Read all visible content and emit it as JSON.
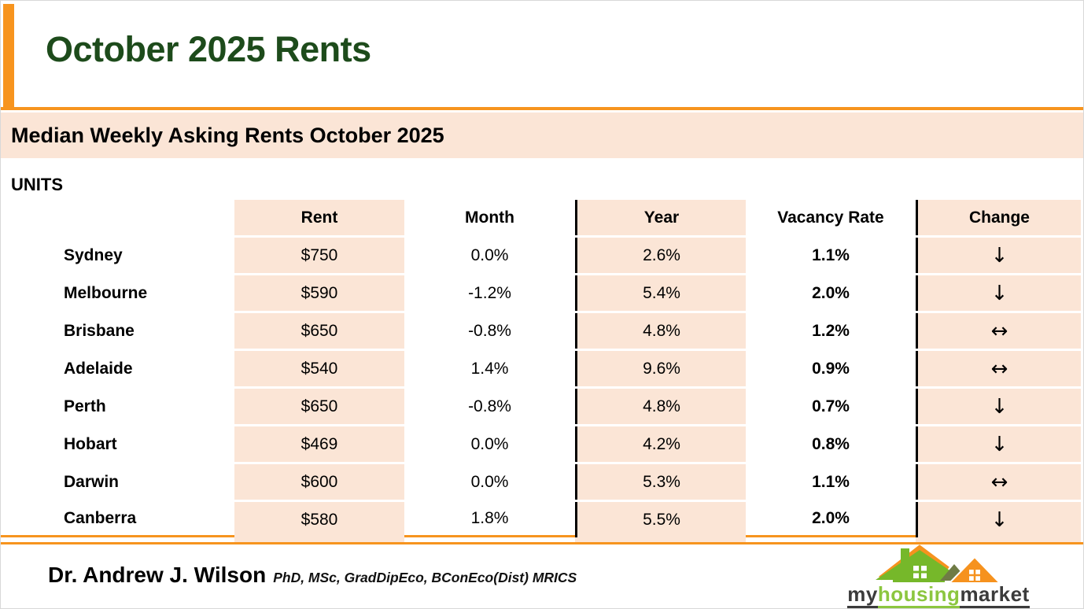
{
  "slide": {
    "title": "October 2025 Rents",
    "section_title": "Median Weekly Asking Rents October 2025",
    "category_label": "UNITS"
  },
  "table": {
    "columns": [
      "Rent",
      "Month",
      "Year",
      "Vacancy Rate",
      "Change"
    ],
    "rows": [
      {
        "city": "Sydney",
        "rent": "$750",
        "month": "0.0%",
        "year": "2.6%",
        "vacancy": "1.1%",
        "change": "↓"
      },
      {
        "city": "Melbourne",
        "rent": "$590",
        "month": "-1.2%",
        "year": "5.4%",
        "vacancy": "2.0%",
        "change": "↓"
      },
      {
        "city": "Brisbane",
        "rent": "$650",
        "month": "-0.8%",
        "year": "4.8%",
        "vacancy": "1.2%",
        "change": "↔"
      },
      {
        "city": "Adelaide",
        "rent": "$540",
        "month": "1.4%",
        "year": "9.6%",
        "vacancy": "0.9%",
        "change": "↔"
      },
      {
        "city": "Perth",
        "rent": "$650",
        "month": "-0.8%",
        "year": "4.8%",
        "vacancy": "0.7%",
        "change": "↓"
      },
      {
        "city": "Hobart",
        "rent": "$469",
        "month": "0.0%",
        "year": "4.2%",
        "vacancy": "0.8%",
        "change": "↓"
      },
      {
        "city": "Darwin",
        "rent": "$600",
        "month": "0.0%",
        "year": "5.3%",
        "vacancy": "1.1%",
        "change": "↔"
      },
      {
        "city": "Canberra",
        "rent": "$580",
        "month": "1.8%",
        "year": "5.5%",
        "vacancy": "2.0%",
        "change": "↓"
      }
    ]
  },
  "footer": {
    "author_name": "Dr. Andrew J. Wilson",
    "author_credentials": "PhD, MSc, GradDipEco, BConEco(Dist) MRICS",
    "logo": {
      "part1": "my",
      "part2": "housing",
      "part3": "market"
    }
  },
  "colors": {
    "accent_orange": "#F7941E",
    "table_fill": "#FBE5D6",
    "title_green": "#1D4B1B",
    "separator_black": "#000000",
    "logo_text_green": "#8CC63F",
    "logo_text_dark": "#3B3B3B",
    "logo_house_green": "#76B82A",
    "logo_house_orange": "#F6921E"
  }
}
